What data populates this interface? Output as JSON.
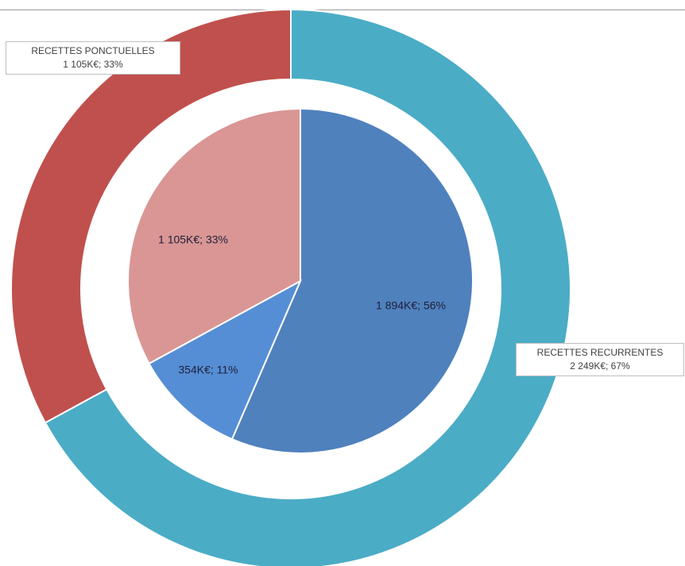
{
  "chart_data": [
    {
      "type": "pie",
      "ring": "outer",
      "slices": [
        {
          "name": "RECETTES RECURRENTES",
          "value": 2249,
          "label": "2 249K€; 67%",
          "color": "#4bacc6"
        },
        {
          "name": "RECETTES PONCTUELLES",
          "value": 1105,
          "label": "1 105K€; 33%",
          "color": "#c0504d"
        }
      ]
    },
    {
      "type": "pie",
      "ring": "inner",
      "slices": [
        {
          "value": 1894,
          "label": "1 894K€; 56%",
          "color": "#4f81bd"
        },
        {
          "value": 354,
          "label": "354K€; 11%",
          "color": "#558ed5"
        },
        {
          "value": 1105,
          "label": "1 105K€; 33%",
          "color": "#d99694"
        }
      ]
    }
  ]
}
